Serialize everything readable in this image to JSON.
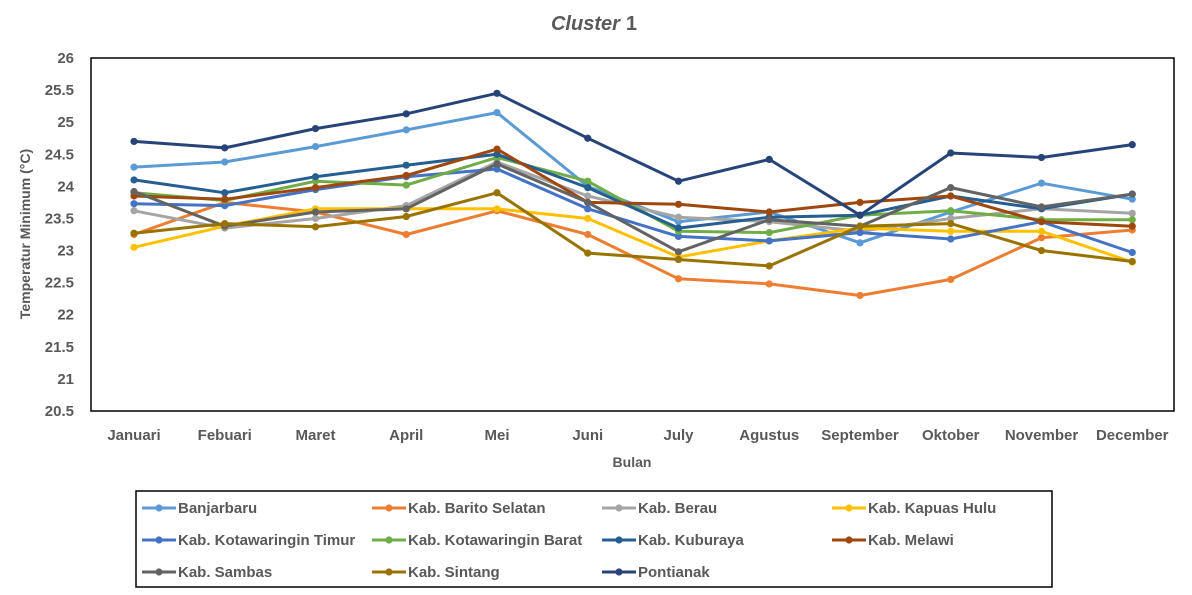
{
  "chart_data": {
    "type": "line",
    "title": "Cluster 1",
    "title_parts": [
      "Cluster",
      "1"
    ],
    "xlabel": "Bulan",
    "ylabel": "Temperatur Minimum (°C)",
    "ylim": [
      20.5,
      26
    ],
    "yticks": [
      "26",
      "25.5",
      "25",
      "24.5",
      "24",
      "23.5",
      "23",
      "22.5",
      "22",
      "21.5",
      "21",
      "20.5"
    ],
    "ytick_values": [
      26,
      25.5,
      25,
      24.5,
      24,
      23.5,
      23,
      22.5,
      22,
      21.5,
      21,
      20.5
    ],
    "grid": false,
    "legend_position": "bottom",
    "categories": [
      "Januari",
      "Febuari",
      "Maret",
      "April",
      "Mei",
      "Juni",
      "July",
      "Agustus",
      "September",
      "Oktober",
      "November",
      "December"
    ],
    "series": [
      {
        "name": "Banjarbaru",
        "color": "#5B9BD5",
        "values": [
          24.3,
          24.38,
          24.62,
          24.88,
          25.15,
          24.0,
          23.45,
          23.6,
          23.12,
          23.6,
          24.05,
          23.8
        ]
      },
      {
        "name": "Kab. Barito Selatan",
        "color": "#ED7D31",
        "values": [
          23.25,
          23.75,
          23.6,
          23.25,
          23.62,
          23.25,
          22.56,
          22.48,
          22.3,
          22.55,
          23.2,
          23.32
        ]
      },
      {
        "name": "Kab. Berau",
        "color": "#A5A5A5",
        "values": [
          23.62,
          23.35,
          23.5,
          23.7,
          24.38,
          23.85,
          23.52,
          23.45,
          23.3,
          23.5,
          23.65,
          23.58
        ]
      },
      {
        "name": "Kab. Kapuas Hulu",
        "color": "#FFC000",
        "values": [
          23.05,
          23.38,
          23.65,
          23.65,
          23.65,
          23.5,
          22.9,
          23.15,
          23.35,
          23.3,
          23.3,
          22.82
        ]
      },
      {
        "name": "Kab. Kotawaringin Timur",
        "color": "#4472C4",
        "values": [
          23.73,
          23.7,
          23.95,
          24.15,
          24.27,
          23.65,
          23.22,
          23.15,
          23.28,
          23.18,
          23.45,
          22.97
        ]
      },
      {
        "name": "Kab. Kotawaringin Barat",
        "color": "#70AD47",
        "values": [
          23.9,
          23.78,
          24.08,
          24.02,
          24.45,
          24.08,
          23.3,
          23.28,
          23.55,
          23.62,
          23.48,
          23.48
        ]
      },
      {
        "name": "Kab. Kuburaya",
        "color": "#255E91",
        "values": [
          24.1,
          23.9,
          24.15,
          24.33,
          24.5,
          23.98,
          23.35,
          23.52,
          23.55,
          23.85,
          23.65,
          23.88
        ]
      },
      {
        "name": "Kab. Melawi",
        "color": "#9E480E",
        "values": [
          23.85,
          23.8,
          23.98,
          24.17,
          24.58,
          23.75,
          23.72,
          23.6,
          23.75,
          23.85,
          23.45,
          23.38
        ]
      },
      {
        "name": "Kab. Sambas",
        "color": "#636363",
        "values": [
          23.92,
          23.38,
          23.6,
          23.65,
          24.35,
          23.75,
          22.98,
          23.48,
          23.38,
          23.98,
          23.68,
          23.88
        ]
      },
      {
        "name": "Kab. Sintang",
        "color": "#997300",
        "values": [
          23.27,
          23.42,
          23.37,
          23.53,
          23.9,
          22.96,
          22.86,
          22.76,
          23.38,
          23.42,
          23.0,
          22.83
        ]
      },
      {
        "name": "Pontianak",
        "color": "#264478",
        "values": [
          24.7,
          24.6,
          24.9,
          25.13,
          25.45,
          24.75,
          24.08,
          24.42,
          23.55,
          24.52,
          24.45,
          24.65
        ]
      }
    ]
  }
}
